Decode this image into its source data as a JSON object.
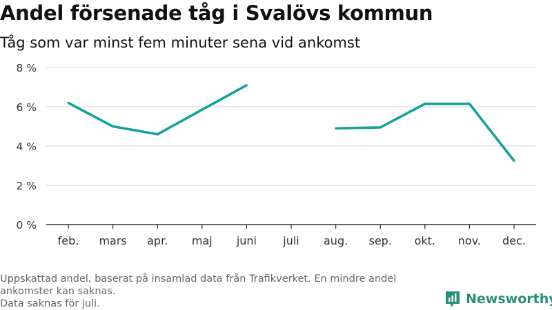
{
  "title": "Andel försenade tåg i Svalövs kommun",
  "subtitle": "Tåg som var minst fem minuter sena vid ankomst",
  "footnote": {
    "line1": "Uppskattad andel, baserat på insamlad data från Trafikverket. En mindre andel ankomster kan saknas.",
    "line2": "Data saknas för juli."
  },
  "brand": {
    "name": "Newsworthy",
    "icon": "newsworthy-logo-icon",
    "color": "#2a8d7a"
  },
  "chart_data": {
    "type": "line",
    "categories": [
      "feb.",
      "mars",
      "apr.",
      "maj",
      "juni",
      "juli",
      "aug.",
      "sep.",
      "okt.",
      "nov.",
      "dec."
    ],
    "series": [
      {
        "values": [
          6.2,
          5.0,
          4.6,
          5.85,
          7.1,
          null,
          4.9,
          4.95,
          6.15,
          6.15,
          3.25
        ],
        "color": "#15a197"
      }
    ],
    "y_ticks": [
      0,
      2,
      4,
      6,
      8
    ],
    "y_tick_labels": [
      "0 %",
      "2 %",
      "4 %",
      "6 %",
      "8 %"
    ],
    "ylim": [
      0,
      8
    ],
    "xlabel": "",
    "ylabel": "",
    "grid": true,
    "grid_color": "#dddddd",
    "axis_color": "#333333"
  }
}
